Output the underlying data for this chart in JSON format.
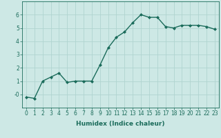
{
  "x": [
    0,
    1,
    2,
    3,
    4,
    5,
    6,
    7,
    8,
    9,
    10,
    11,
    12,
    13,
    14,
    15,
    16,
    17,
    18,
    19,
    20,
    21,
    22,
    23
  ],
  "y": [
    -0.2,
    -0.3,
    1.0,
    1.3,
    1.6,
    0.9,
    1.0,
    1.0,
    1.0,
    2.2,
    3.5,
    4.3,
    4.7,
    5.4,
    6.0,
    5.8,
    5.8,
    5.1,
    5.0,
    5.2,
    5.2,
    5.2,
    5.1,
    4.9
  ],
  "line_color": "#1a6b5a",
  "marker": "D",
  "marker_size": 2,
  "bg_color": "#cde8e5",
  "grid_color": "#b0d4d0",
  "xlabel": "Humidex (Indice chaleur)",
  "xlim": [
    -0.5,
    23.5
  ],
  "ylim": [
    -1.0,
    7.0
  ],
  "yticks": [
    0,
    1,
    2,
    3,
    4,
    5,
    6
  ],
  "ytick_labels": [
    "-0",
    "1",
    "2",
    "3",
    "4",
    "5",
    "6"
  ],
  "xticks": [
    0,
    1,
    2,
    3,
    4,
    5,
    6,
    7,
    8,
    9,
    10,
    11,
    12,
    13,
    14,
    15,
    16,
    17,
    18,
    19,
    20,
    21,
    22,
    23
  ],
  "label_fontsize": 6.5,
  "tick_fontsize": 5.5,
  "line_width": 1.0
}
